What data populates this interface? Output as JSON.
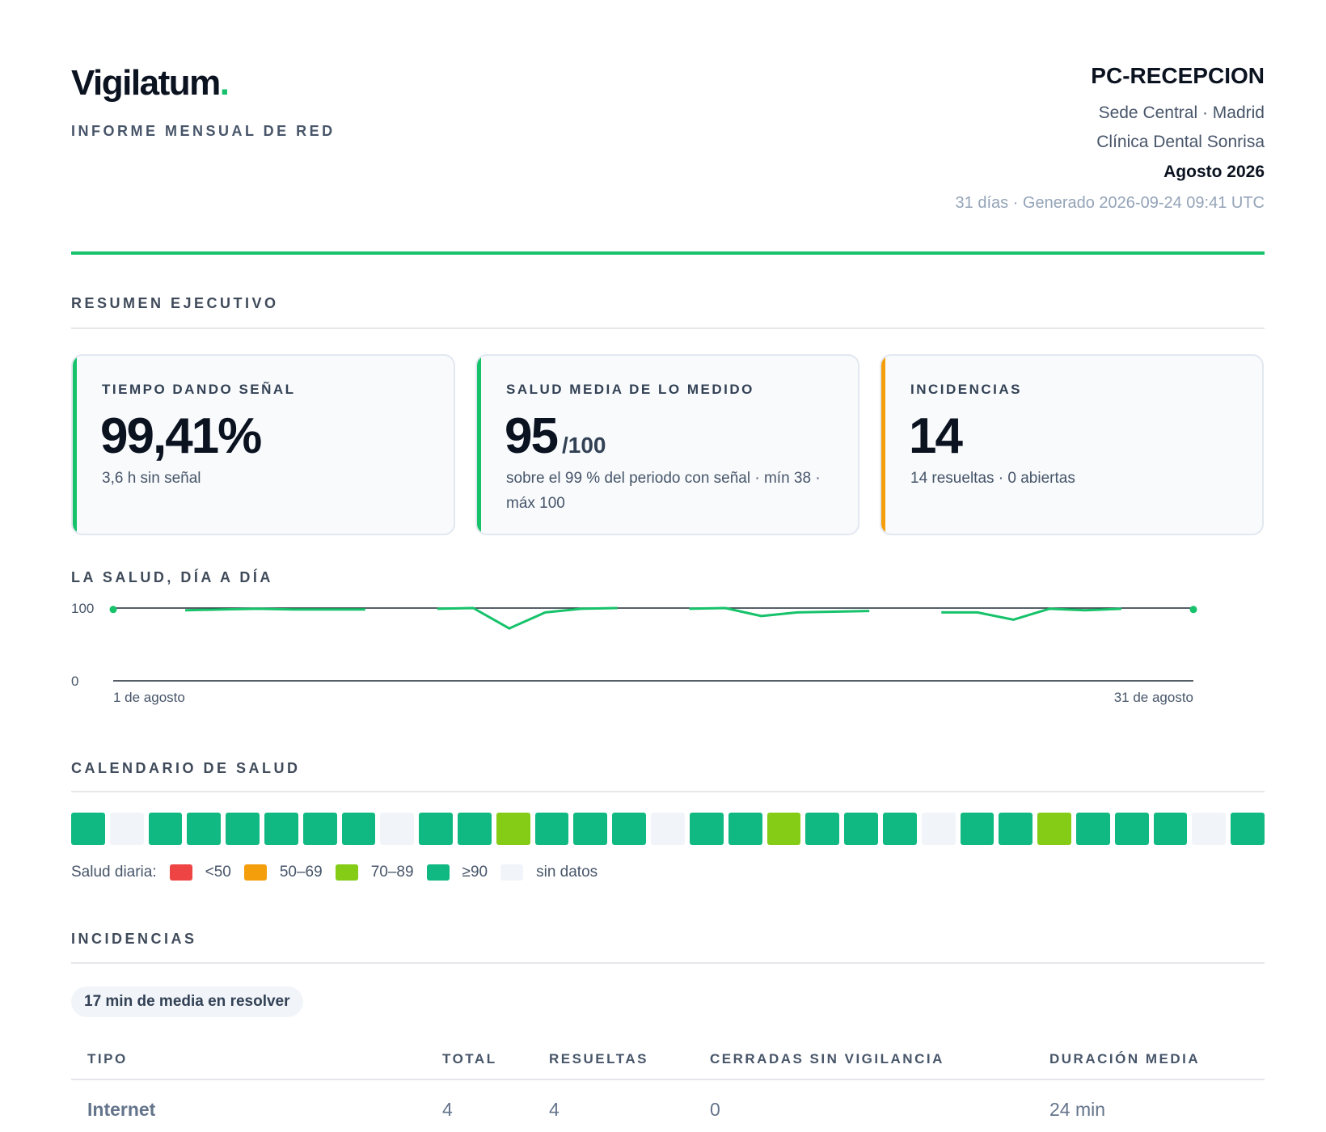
{
  "header": {
    "brand": "Vigilatum",
    "brand_dot": ".",
    "subtitle": "INFORME MENSUAL DE RED",
    "host": "PC-RECEPCION",
    "site": "Sede Central · Madrid",
    "client": "Clínica Dental Sonrisa",
    "period": "Agosto 2026",
    "generated": "31 días · Generado 2026-09-24 09:41 UTC"
  },
  "summary": {
    "title": "RESUMEN EJECUTIVO",
    "cards": [
      {
        "label": "TIEMPO DANDO SEÑAL",
        "value": "99,41%",
        "unit": "",
        "note": "3,6 h sin señal",
        "accent": "#16c26a"
      },
      {
        "label": "SALUD MEDIA DE LO MEDIDO",
        "value": "95",
        "unit": "/100",
        "note": "sobre el 99 % del periodo con señal · mín 38 · máx 100",
        "accent": "#16c26a"
      },
      {
        "label": "INCIDENCIAS",
        "value": "14",
        "unit": "",
        "note": "14 resueltas · 0 abiertas",
        "accent": "#f59e0b"
      }
    ]
  },
  "daily_chart": {
    "title": "LA SALUD, DÍA A DÍA",
    "y_max_label": "100",
    "y_min_label": "0",
    "x_start_label": "1 de agosto",
    "x_end_label": "31 de agosto",
    "color": "#16c26a"
  },
  "chart_data": {
    "type": "line",
    "x": [
      1,
      2,
      3,
      4,
      5,
      6,
      7,
      8,
      9,
      10,
      11,
      12,
      13,
      14,
      15,
      16,
      17,
      18,
      19,
      20,
      21,
      22,
      23,
      24,
      25,
      26,
      27,
      28,
      29,
      30,
      31
    ],
    "values": [
      98,
      null,
      97,
      98,
      99,
      98,
      98,
      98,
      null,
      99,
      100,
      72,
      94,
      99,
      100,
      null,
      99,
      100,
      89,
      94,
      95,
      96,
      null,
      94,
      94,
      84,
      99,
      97,
      99,
      null,
      98
    ],
    "ylim": [
      0,
      100
    ],
    "grid": false
  },
  "calendar": {
    "title": "CALENDARIO DE SALUD",
    "days": [
      "g",
      "n",
      "g",
      "g",
      "g",
      "g",
      "g",
      "g",
      "n",
      "g",
      "g",
      "l",
      "g",
      "g",
      "g",
      "n",
      "g",
      "g",
      "l",
      "g",
      "g",
      "g",
      "n",
      "g",
      "g",
      "l",
      "g",
      "g",
      "g",
      "n",
      "g"
    ],
    "colors": {
      "r": "#ef4444",
      "o": "#f59e0b",
      "l": "#84cc16",
      "g": "#10b981",
      "n": "#f1f5f9"
    },
    "legend_title": "Salud diaria:",
    "legend": [
      {
        "label": "<50",
        "color": "#ef4444"
      },
      {
        "label": "50–69",
        "color": "#f59e0b"
      },
      {
        "label": "70–89",
        "color": "#84cc16"
      },
      {
        "label": "≥90",
        "color": "#10b981"
      },
      {
        "label": "sin datos",
        "color": "#f1f5f9"
      }
    ]
  },
  "incidents": {
    "title": "INCIDENCIAS",
    "pill": "17 min de media en resolver",
    "columns": [
      "TIPO",
      "TOTAL",
      "RESUELTAS",
      "CERRADAS SIN VIGILANCIA",
      "DURACIÓN MEDIA"
    ],
    "rows": [
      [
        "Internet",
        "4",
        "4",
        "0",
        "24 min"
      ]
    ]
  }
}
